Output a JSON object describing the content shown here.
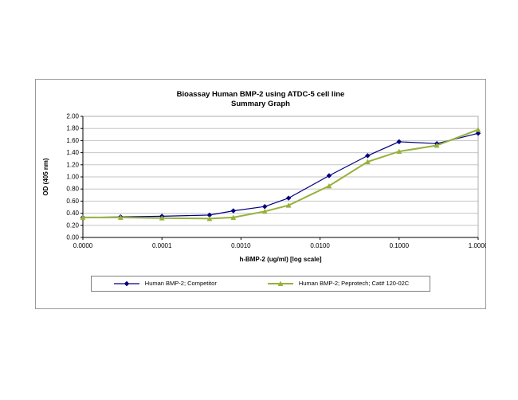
{
  "page": {
    "background": "#ffffff"
  },
  "chart": {
    "frame_border_color": "#9a9a9a",
    "gridline_color": "#c6c6c6",
    "axis_color": "#000000",
    "plot_border_color": "#aeaeae",
    "legend_border_color": "#808080"
  },
  "chart_data": {
    "type": "line",
    "title": "Bioassay Human BMP-2 using ATDC-5 cell line",
    "subtitle": "Summary Graph",
    "xlabel": "h-BMP-2 (ug/ml) [log scale]",
    "ylabel": "OD (405 nm)",
    "x_scale": "log",
    "x_tick_labels": [
      "0.0000",
      "0.0001",
      "0.0010",
      "0.0100",
      "0.1000",
      "1.0000"
    ],
    "x_log_min_exponent": -5,
    "x_log_max_exponent": 0,
    "ylim": [
      0.0,
      2.0
    ],
    "ytick_step": 0.2,
    "grid": true,
    "legend_position": "bottom",
    "x": [
      0,
      3e-05,
      0.0001,
      0.0004,
      0.0008,
      0.002,
      0.004,
      0.013,
      0.04,
      0.1,
      0.3,
      1.0
    ],
    "series": [
      {
        "name": "Human BMP-2; Competitor",
        "color": "#000080",
        "marker": "diamond",
        "line_width": 1.2,
        "values": [
          0.33,
          0.34,
          0.35,
          0.37,
          0.44,
          0.51,
          0.65,
          1.02,
          1.35,
          1.58,
          1.55,
          1.72
        ]
      },
      {
        "name": "Human BMP-2; Peprotech; Cat# 120-02C",
        "color": "#96B13A",
        "marker": "triangle",
        "line_width": 2.0,
        "values": [
          0.33,
          0.33,
          0.32,
          0.31,
          0.33,
          0.43,
          0.53,
          0.85,
          1.25,
          1.42,
          1.52,
          1.78
        ]
      }
    ]
  }
}
